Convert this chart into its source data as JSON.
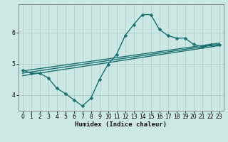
{
  "xlabel": "Humidex (Indice chaleur)",
  "background_color": "#cce8e4",
  "grid_color": "#aed0cc",
  "line_color": "#1a7070",
  "xlim": [
    -0.5,
    23.5
  ],
  "ylim": [
    3.5,
    6.9
  ],
  "yticks": [
    4,
    5,
    6
  ],
  "xticks": [
    0,
    1,
    2,
    3,
    4,
    5,
    6,
    7,
    8,
    9,
    10,
    11,
    12,
    13,
    14,
    15,
    16,
    17,
    18,
    19,
    20,
    21,
    22,
    23
  ],
  "main_curve_x": [
    0,
    1,
    2,
    3,
    4,
    5,
    6,
    7,
    8,
    9,
    10,
    11,
    12,
    13,
    14,
    15,
    16,
    17,
    18,
    19,
    20,
    21,
    22,
    23
  ],
  "main_curve_y": [
    4.8,
    4.7,
    4.7,
    4.55,
    4.22,
    4.05,
    3.85,
    3.65,
    3.9,
    4.5,
    4.98,
    5.3,
    5.9,
    6.25,
    6.57,
    6.57,
    6.1,
    5.9,
    5.82,
    5.82,
    5.62,
    5.55,
    5.6,
    5.6
  ],
  "trend_lines": [
    {
      "x": [
        0,
        23
      ],
      "y": [
        4.62,
        5.58
      ]
    },
    {
      "x": [
        0,
        23
      ],
      "y": [
        4.7,
        5.62
      ]
    },
    {
      "x": [
        0,
        23
      ],
      "y": [
        4.77,
        5.66
      ]
    }
  ],
  "marker_size": 2.5,
  "line_width": 1.0
}
